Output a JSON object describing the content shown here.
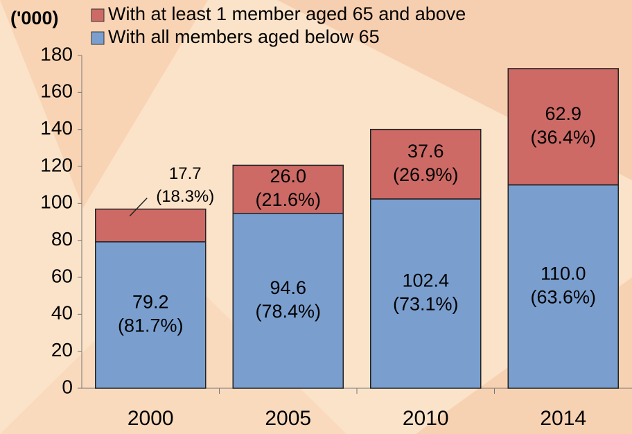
{
  "chart_data": {
    "type": "stacked_bar",
    "unit_label": "('000)",
    "categories": [
      "2000",
      "2005",
      "2010",
      "2014"
    ],
    "series": [
      {
        "name": "With all members aged below 65",
        "color": "#7a9fcf",
        "values": [
          79.2,
          94.6,
          102.4,
          110.0
        ],
        "value_labels": [
          "79.2",
          "94.6",
          "102.4",
          "110.0"
        ],
        "share_labels": [
          "(81.7%)",
          "(78.4%)",
          "(73.1%)",
          "(63.6%)"
        ]
      },
      {
        "name": "With at least 1 member aged 65 and above",
        "color": "#cd6a66",
        "values": [
          17.7,
          26.0,
          37.6,
          62.9
        ],
        "value_labels": [
          "17.7",
          "26.0",
          "37.6",
          "62.9"
        ],
        "share_labels": [
          "(18.3%)",
          "(21.6%)",
          "(26.9%)",
          "(36.4%)"
        ]
      }
    ],
    "ylim": [
      0,
      180
    ],
    "yticks": [
      0,
      20,
      40,
      60,
      80,
      100,
      120,
      140,
      160,
      180
    ]
  }
}
